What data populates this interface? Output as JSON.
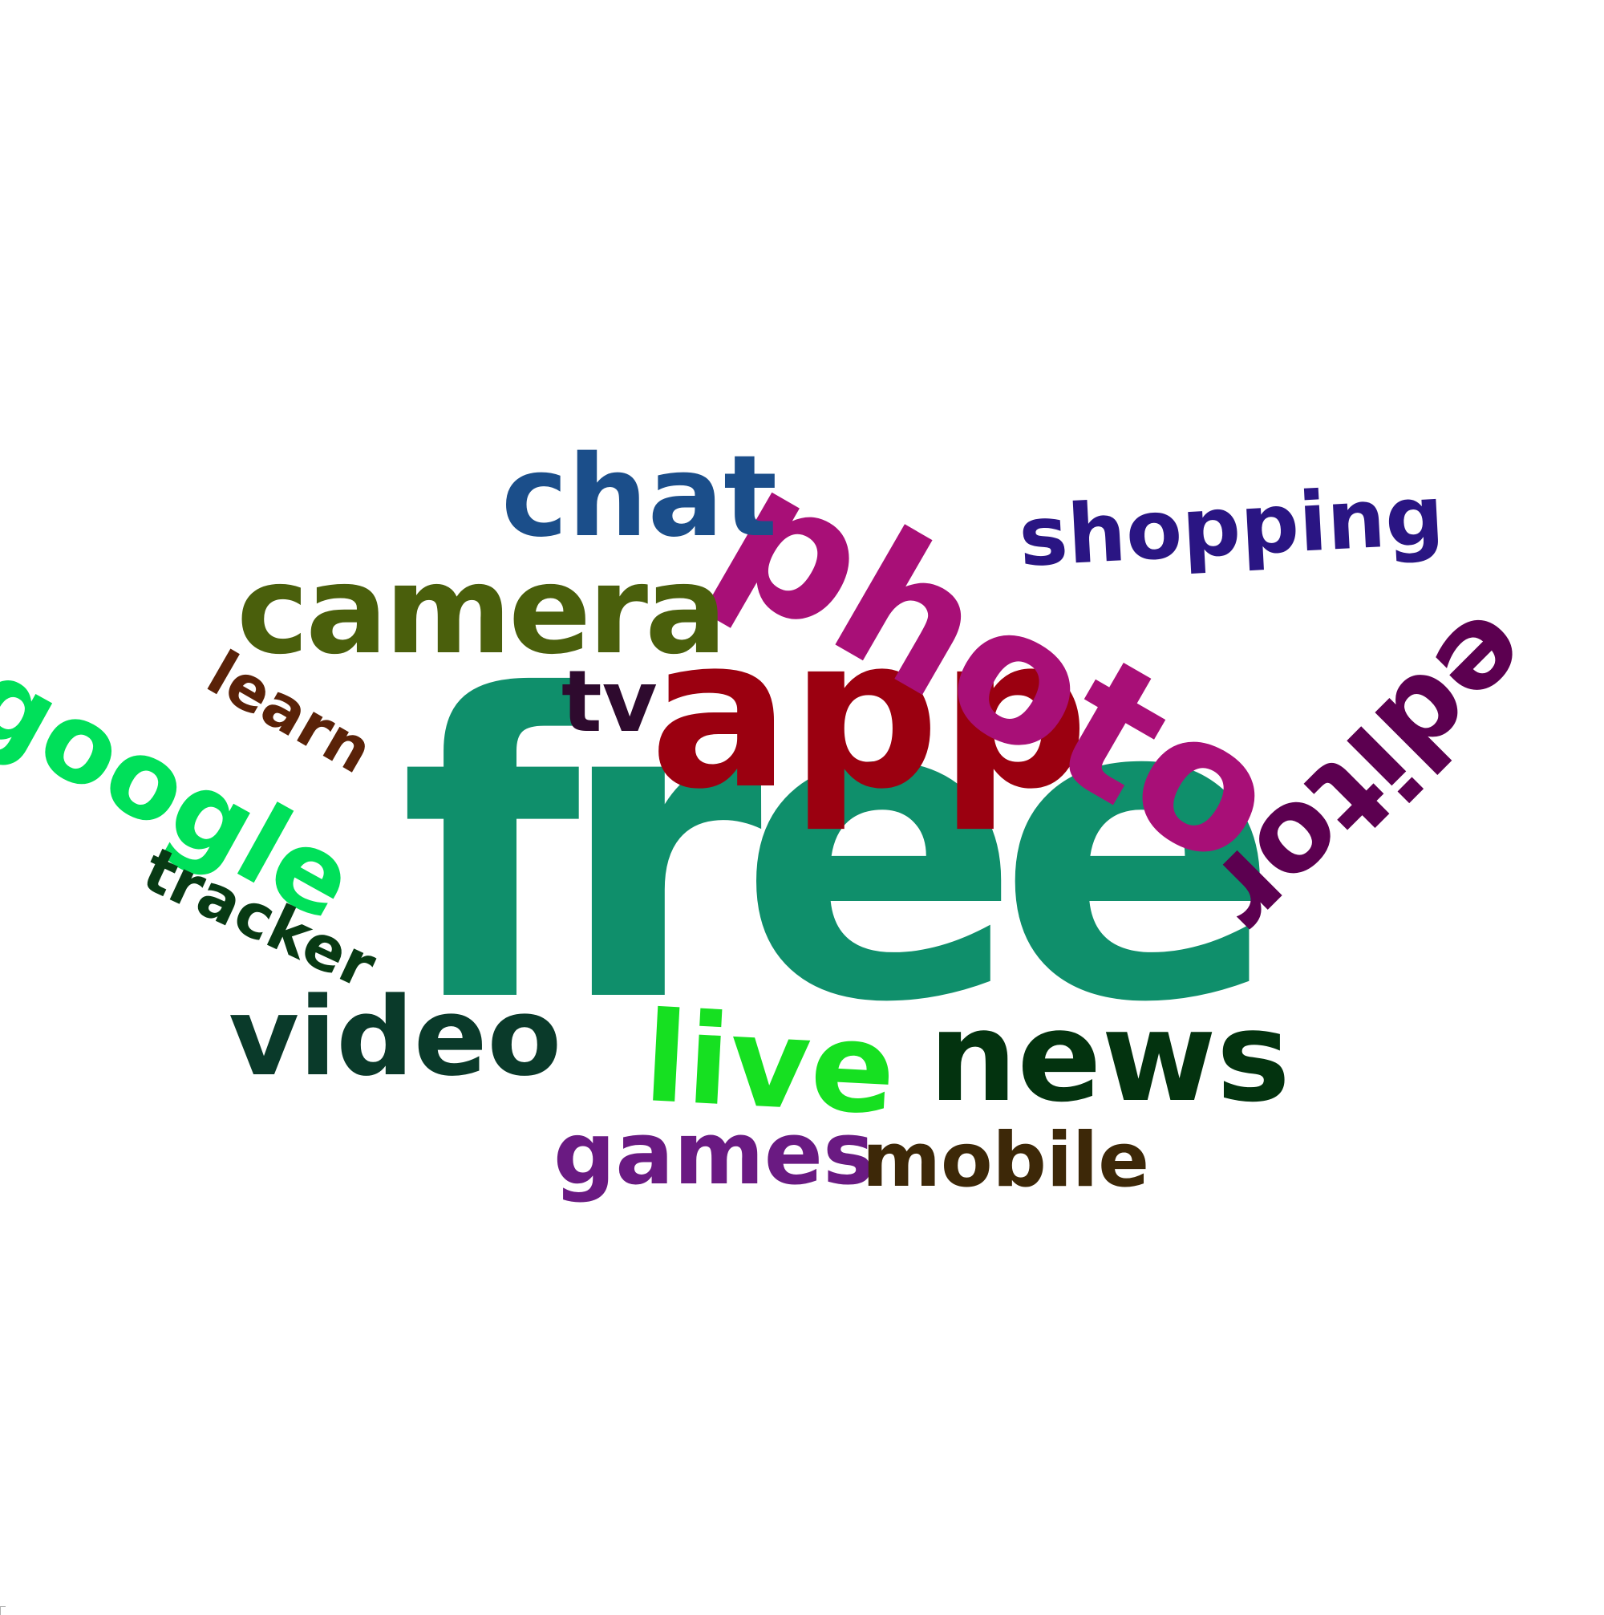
{
  "words": [
    {
      "text": "free",
      "color": "#0f8f6b"
    },
    {
      "text": "app",
      "color": "#9b0010"
    },
    {
      "text": "photo",
      "color": "#a80f77"
    },
    {
      "text": "camera",
      "color": "#4a5f0c"
    },
    {
      "text": "chat",
      "color": "#1b4e8a"
    },
    {
      "text": "shopping",
      "color": "#2a1583"
    },
    {
      "text": "editor",
      "color": "#5c0050"
    },
    {
      "text": "google",
      "color": "#00e05a"
    },
    {
      "text": "learn",
      "color": "#5a2208"
    },
    {
      "text": "tracker",
      "color": "#083a14"
    },
    {
      "text": "tv",
      "color": "#2e0a2e"
    },
    {
      "text": "video",
      "color": "#0a3a2a"
    },
    {
      "text": "live",
      "color": "#16e021"
    },
    {
      "text": "news",
      "color": "#03330f"
    },
    {
      "text": "games",
      "color": "#6a1a82"
    },
    {
      "text": "mobile",
      "color": "#3d2808"
    }
  ]
}
